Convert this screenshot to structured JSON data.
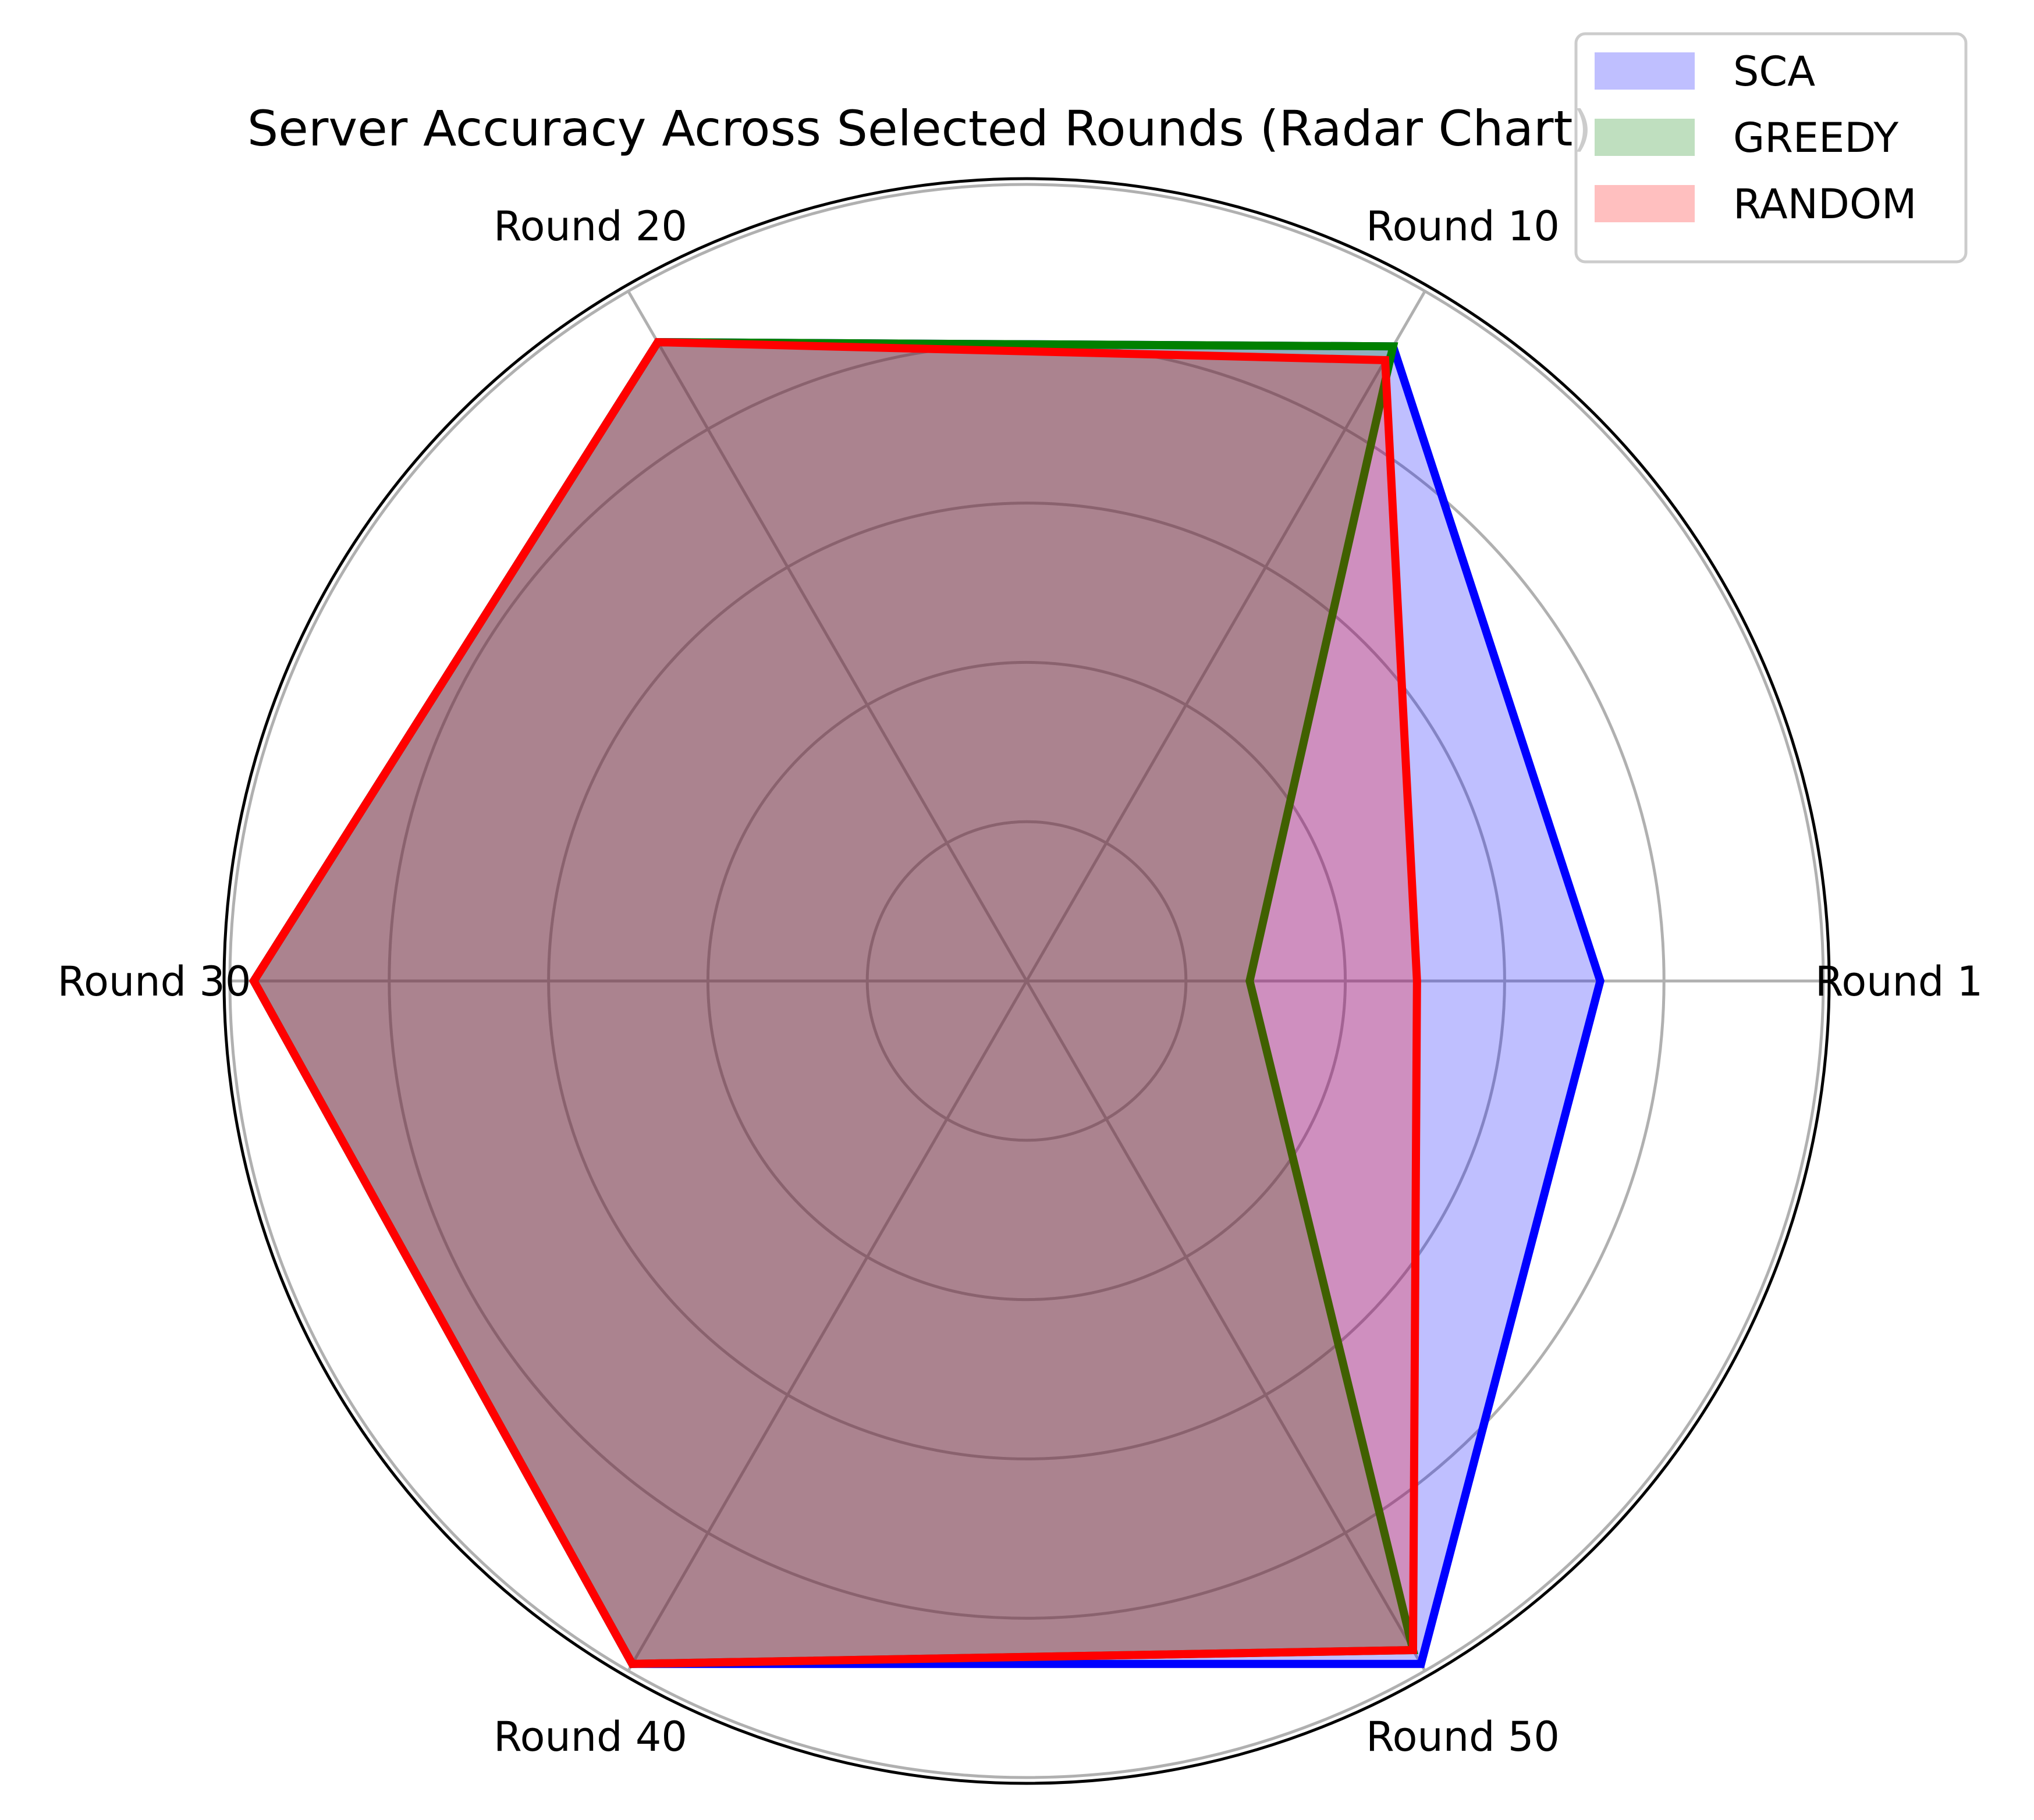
{
  "chart_data": {
    "type": "radar",
    "title": "Server Accuracy Across Selected Rounds (Radar Chart)",
    "categories": [
      "Round 1",
      "Round 10",
      "Round 20",
      "Round 30",
      "Round 40",
      "Round 50"
    ],
    "radial_range": [
      0,
      1
    ],
    "grid": true,
    "series": [
      {
        "name": "SCA",
        "values": [
          0.72,
          0.92,
          0.926,
          0.97,
          0.99,
          0.99
        ],
        "color": "#0000ff"
      },
      {
        "name": "GREEDY",
        "values": [
          0.28,
          0.92,
          0.926,
          0.97,
          0.99,
          0.97
        ],
        "color": "#008000"
      },
      {
        "name": "RANDOM",
        "values": [
          0.49,
          0.9,
          0.926,
          0.97,
          0.99,
          0.97
        ],
        "color": "#ff0000"
      }
    ],
    "legend": {
      "position": "top-right"
    }
  }
}
